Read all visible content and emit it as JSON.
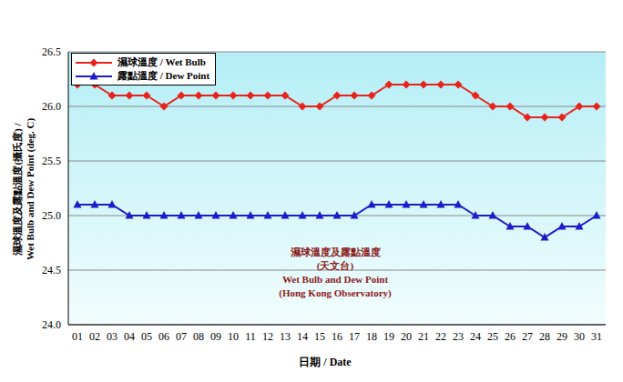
{
  "chart_data": {
    "type": "line",
    "annotation": [
      "濕球溫度及露點溫度",
      "(天文台)",
      "Wet Bulb and Dew Point",
      "(Hong Kong Observatory)"
    ],
    "xlabel": "日期 / Date",
    "ylabel": "濕球溫度及露點溫度(攝氏度) / Wet Bulb and Dew Point (deg. C)",
    "categories": [
      "01",
      "02",
      "03",
      "04",
      "05",
      "06",
      "07",
      "08",
      "09",
      "10",
      "11",
      "12",
      "13",
      "14",
      "15",
      "16",
      "17",
      "18",
      "19",
      "20",
      "21",
      "22",
      "23",
      "24",
      "25",
      "26",
      "27",
      "28",
      "29",
      "30",
      "31"
    ],
    "series": [
      {
        "name": "濕球溫度 / Wet Bulb",
        "color": "#e8231b",
        "marker": "diamond",
        "values": [
          26.2,
          26.2,
          26.1,
          26.1,
          26.1,
          26.0,
          26.1,
          26.1,
          26.1,
          26.1,
          26.1,
          26.1,
          26.1,
          26.0,
          26.0,
          26.1,
          26.1,
          26.1,
          26.2,
          26.2,
          26.2,
          26.2,
          26.2,
          26.1,
          26.0,
          26.0,
          25.9,
          25.9,
          25.9,
          26.0,
          26.0
        ]
      },
      {
        "name": "露點溫度 / Dew Point",
        "color": "#1c1cc8",
        "marker": "triangle",
        "values": [
          25.1,
          25.1,
          25.1,
          25.0,
          25.0,
          25.0,
          25.0,
          25.0,
          25.0,
          25.0,
          25.0,
          25.0,
          25.0,
          25.0,
          25.0,
          25.0,
          25.0,
          25.1,
          25.1,
          25.1,
          25.1,
          25.1,
          25.1,
          25.0,
          25.0,
          24.9,
          24.9,
          24.8,
          24.9,
          24.9,
          25.0
        ]
      }
    ],
    "ylim": [
      24,
      26.5
    ],
    "yticks": [
      {
        "value": 24,
        "label": "24.0"
      },
      {
        "value": 24.5,
        "label": "24.5"
      },
      {
        "value": 25,
        "label": "25.0"
      },
      {
        "value": 25.5,
        "label": "25.5"
      },
      {
        "value": 26,
        "label": "26.0"
      },
      {
        "value": 26.5,
        "label": "26.5"
      }
    ],
    "grid": true,
    "legend": "upper left"
  }
}
